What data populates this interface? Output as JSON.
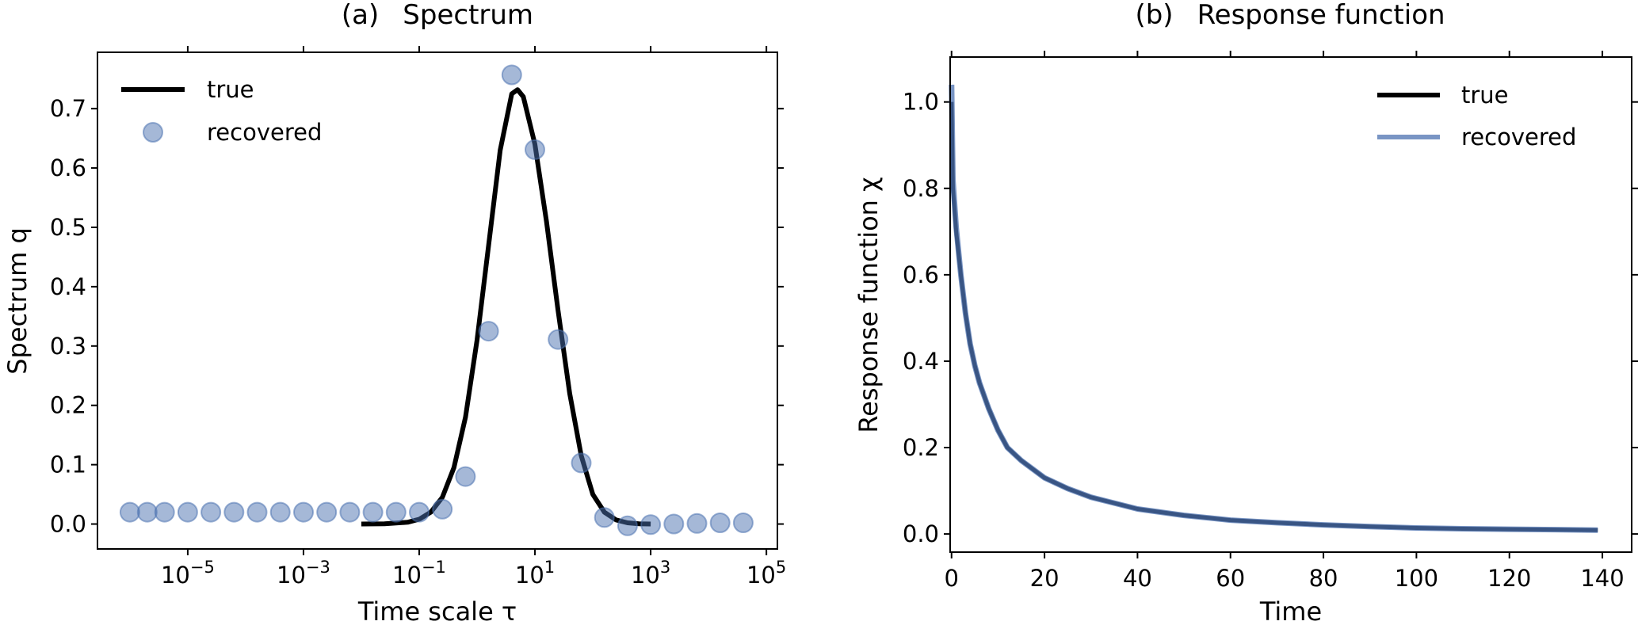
{
  "chart_data": [
    {
      "type": "scatter",
      "panel": "(a)",
      "title": "Spectrum",
      "xlabel": "Time scale τ",
      "ylabel": "Spectrum q",
      "xscale": "log",
      "xlim_log10": [
        -6.56,
        5.19
      ],
      "ylim": [
        -0.042,
        0.795
      ],
      "grid": false,
      "legend_position": "top-left",
      "x_ticks": [
        {
          "base": "10",
          "exp": "−5",
          "log10": -5
        },
        {
          "base": "10",
          "exp": "−3",
          "log10": -3
        },
        {
          "base": "10",
          "exp": "−1",
          "log10": -1
        },
        {
          "base": "10",
          "exp": "1",
          "log10": 1
        },
        {
          "base": "10",
          "exp": "3",
          "log10": 3
        },
        {
          "base": "10",
          "exp": "5",
          "log10": 5
        }
      ],
      "y_ticks": [
        {
          "label": "0.0",
          "value": 0.0
        },
        {
          "label": "0.1",
          "value": 0.1
        },
        {
          "label": "0.2",
          "value": 0.2
        },
        {
          "label": "0.3",
          "value": 0.3
        },
        {
          "label": "0.4",
          "value": 0.4
        },
        {
          "label": "0.5",
          "value": 0.5
        },
        {
          "label": "0.6",
          "value": 0.6
        },
        {
          "label": "0.7",
          "value": 0.7
        }
      ],
      "series": [
        {
          "name": "true",
          "kind": "line",
          "color": "#000000",
          "log10_x": [
            -2.0,
            -1.6,
            -1.2,
            -1.0,
            -0.8,
            -0.6,
            -0.4,
            -0.2,
            0.0,
            0.2,
            0.4,
            0.6,
            0.7,
            0.8,
            1.0,
            1.2,
            1.4,
            1.6,
            1.8,
            2.0,
            2.2,
            2.4,
            2.6,
            2.8,
            3.0
          ],
          "y": [
            0.0,
            0.0005,
            0.003,
            0.008,
            0.02,
            0.045,
            0.095,
            0.18,
            0.31,
            0.47,
            0.63,
            0.725,
            0.732,
            0.72,
            0.64,
            0.51,
            0.36,
            0.22,
            0.115,
            0.05,
            0.02,
            0.007,
            0.002,
            0.0005,
            0.0
          ]
        },
        {
          "name": "recovered",
          "kind": "markers",
          "color": "#4c72b0",
          "log10_x": [
            -6.0,
            -5.7,
            -5.4,
            -5.0,
            -4.6,
            -4.2,
            -3.8,
            -3.4,
            -3.0,
            -2.6,
            -2.2,
            -1.8,
            -1.4,
            -1.0,
            -0.6,
            -0.2,
            0.2,
            0.6,
            1.0,
            1.4,
            1.8,
            2.2,
            2.6,
            3.0,
            3.4,
            3.8,
            4.2,
            4.6
          ],
          "y": [
            0.02,
            0.02,
            0.02,
            0.02,
            0.02,
            0.02,
            0.02,
            0.02,
            0.02,
            0.02,
            0.02,
            0.02,
            0.02,
            0.02,
            0.025,
            0.08,
            0.325,
            0.757,
            0.631,
            0.311,
            0.103,
            0.011,
            -0.003,
            -0.001,
            0.0,
            0.001,
            0.002,
            0.002
          ]
        }
      ]
    },
    {
      "type": "line",
      "panel": "(b)",
      "title": "Response function",
      "xlabel": "Time",
      "ylabel": "Response function χ",
      "xlim": [
        -0.3,
        146.3
      ],
      "ylim": [
        -0.042,
        1.104
      ],
      "grid": false,
      "legend_position": "top-right",
      "x_ticks": [
        {
          "label": "0",
          "value": 0
        },
        {
          "label": "20",
          "value": 20
        },
        {
          "label": "40",
          "value": 40
        },
        {
          "label": "60",
          "value": 60
        },
        {
          "label": "80",
          "value": 80
        },
        {
          "label": "100",
          "value": 100
        },
        {
          "label": "120",
          "value": 120
        },
        {
          "label": "140",
          "value": 140
        }
      ],
      "y_ticks": [
        {
          "label": "0.0",
          "value": 0.0
        },
        {
          "label": "0.2",
          "value": 0.2
        },
        {
          "label": "0.4",
          "value": 0.4
        },
        {
          "label": "0.6",
          "value": 0.6
        },
        {
          "label": "0.8",
          "value": 0.8
        },
        {
          "label": "1.0",
          "value": 1.0
        }
      ],
      "series": [
        {
          "name": "true",
          "color": "#000000",
          "x": [
            0,
            0.3,
            1,
            2,
            3,
            4,
            5,
            6,
            8,
            10,
            12,
            15,
            20,
            25,
            30,
            40,
            50,
            60,
            70,
            80,
            90,
            100,
            110,
            120,
            130,
            139
          ],
          "y": [
            1.0,
            0.8,
            0.7,
            0.6,
            0.51,
            0.44,
            0.39,
            0.35,
            0.29,
            0.24,
            0.2,
            0.17,
            0.13,
            0.105,
            0.085,
            0.058,
            0.043,
            0.032,
            0.026,
            0.021,
            0.017,
            0.014,
            0.012,
            0.011,
            0.01,
            0.009
          ]
        },
        {
          "name": "recovered",
          "color": "#4c72b0",
          "x": [
            0,
            0.3,
            1,
            2,
            3,
            4,
            5,
            6,
            8,
            10,
            12,
            15,
            20,
            25,
            30,
            40,
            50,
            60,
            70,
            80,
            90,
            100,
            110,
            120,
            130,
            139
          ],
          "y": [
            1.04,
            0.82,
            0.71,
            0.6,
            0.51,
            0.44,
            0.39,
            0.35,
            0.29,
            0.24,
            0.2,
            0.17,
            0.13,
            0.105,
            0.085,
            0.058,
            0.043,
            0.032,
            0.026,
            0.021,
            0.017,
            0.014,
            0.012,
            0.011,
            0.01,
            0.009
          ]
        }
      ]
    }
  ]
}
